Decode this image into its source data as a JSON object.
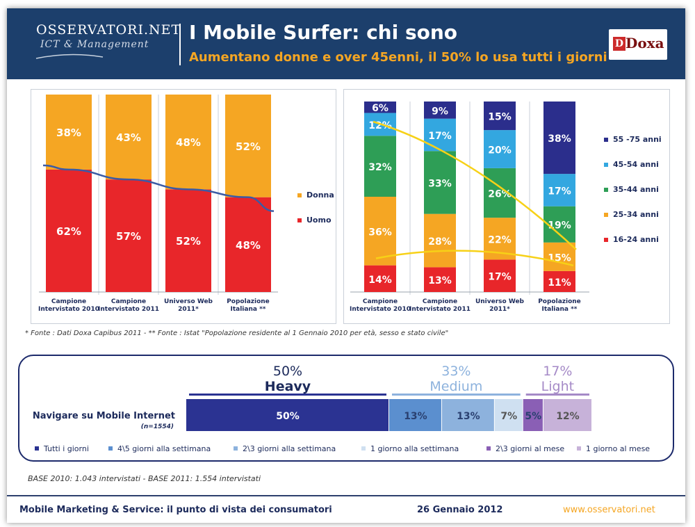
{
  "header": {
    "logo_name": "OSSERVATORI.NET",
    "logo_sub": "ICT & Management",
    "title": "I Mobile Surfer: chi sono",
    "subtitle": "Aumentano donne e over 45enni, il 50% lo usa tutti i giorni",
    "partner_logo": "Doxa"
  },
  "footnote": "* Fonte : Dati Doxa Capibus 2011 - ** Fonte : Istat \"Popolazione residente al 1 Gennaio 2010 per età, sesso e stato civile\"",
  "base": "BASE 2010: 1.043 intervistati - BASE 2011: 1.554 intervistati",
  "footer": {
    "left": "Mobile Marketing & Service: il punto di vista dei consumatori",
    "date": "26 Gennaio 2012",
    "url": "www.osservatori.net"
  },
  "colors": {
    "orange": "#f5a623",
    "red": "#e8262a",
    "green": "#2e9e56",
    "light_blue": "#33a7e0",
    "navy": "#2b2e8c",
    "trend_blue": "#3b5ba5",
    "trend_yellow": "#f7d117",
    "heavy": "#2b3392",
    "medium_1": "#5b8fcf",
    "medium_2": "#8db2dd",
    "medium_3": "#cfe0f1",
    "light_1": "#8a5fb5",
    "light_2": "#c7b2d9"
  },
  "chart_data": [
    {
      "type": "bar",
      "stacked": true,
      "title": "",
      "categories": [
        [
          "Campione",
          "Intervistato 2010"
        ],
        [
          "Campione",
          "Intervistato 2011"
        ],
        [
          "Universo Web",
          "2011*"
        ],
        [
          "Popolazione",
          "Italiana **"
        ]
      ],
      "series": [
        {
          "name": "Uomo",
          "values": [
            62,
            57,
            52,
            48
          ],
          "labels": [
            "62%",
            "57%",
            "52%",
            "48%"
          ],
          "color": "#e8262a"
        },
        {
          "name": "Donna",
          "values": [
            38,
            43,
            48,
            52
          ],
          "labels": [
            "38%",
            "43%",
            "48%",
            "52%"
          ],
          "color": "#f5a623"
        }
      ],
      "legend": [
        "Donna",
        "Uomo"
      ],
      "ylim": [
        0,
        100
      ],
      "trend": "Uomo"
    },
    {
      "type": "bar",
      "stacked": true,
      "title": "",
      "categories": [
        [
          "Campione",
          "Intervistato 2010"
        ],
        [
          "Campione",
          "Intervistato 2011"
        ],
        [
          "Universo Web",
          "2011*"
        ],
        [
          "Popolazione",
          "Italiana **"
        ]
      ],
      "series": [
        {
          "name": "16-24  anni",
          "values": [
            14,
            13,
            17,
            11
          ],
          "labels": [
            "14%",
            "13%",
            "17%",
            "11%"
          ],
          "color": "#e8262a"
        },
        {
          "name": "25-34 anni",
          "values": [
            36,
            28,
            22,
            15
          ],
          "labels": [
            "36%",
            "28%",
            "22%",
            "15%"
          ],
          "color": "#f5a623"
        },
        {
          "name": "35-44 anni",
          "values": [
            32,
            33,
            26,
            19
          ],
          "labels": [
            "32%",
            "33%",
            "26%",
            "19%"
          ],
          "color": "#2e9e56"
        },
        {
          "name": "45-54 anni",
          "values": [
            12,
            17,
            20,
            17
          ],
          "labels": [
            "12%",
            "17%",
            "20%",
            "17%"
          ],
          "color": "#33a7e0"
        },
        {
          "name": "55 -75 anni",
          "values": [
            6,
            9,
            15,
            38
          ],
          "labels": [
            "6%",
            "9%",
            "15%",
            "38%"
          ],
          "color": "#2b2e8c"
        }
      ],
      "legend": [
        "55 -75 anni",
        "45-54 anni",
        "35-44 anni",
        "25-34 anni",
        "16-24  anni"
      ],
      "ylim": [
        0,
        100
      ]
    },
    {
      "type": "bar",
      "stacked": true,
      "orientation": "horizontal",
      "row_label": "Navigare su Mobile Internet",
      "row_sublabel": "(n=1554)",
      "groups": [
        {
          "pct": "50%",
          "name": "Heavy",
          "total": 50,
          "color": "#2b3392"
        },
        {
          "pct": "33%",
          "name": "Medium",
          "total": 33,
          "color": "#8db2dd"
        },
        {
          "pct": "17%",
          "name": "Light",
          "total": 17,
          "color": "#a58ac7"
        }
      ],
      "segments": [
        {
          "name": "Tutti i giorni",
          "value": 50,
          "label": "50%",
          "color": "#2b3392"
        },
        {
          "name": "4\\5 giorni alla settimana",
          "value": 13,
          "label": "13%",
          "color": "#5b8fcf"
        },
        {
          "name": "2\\3 giorni alla settimana",
          "value": 13,
          "label": "13%",
          "color": "#8db2dd"
        },
        {
          "name": "1 giorno alla settimana",
          "value": 7,
          "label": "7%",
          "color": "#cfe0f1"
        },
        {
          "name": "2\\3 giorni al mese",
          "value": 5,
          "label": "5%",
          "color": "#8a5fb5"
        },
        {
          "name": "1 giorno al mese",
          "value": 12,
          "label": "12%",
          "color": "#c7b2d9"
        }
      ]
    }
  ]
}
